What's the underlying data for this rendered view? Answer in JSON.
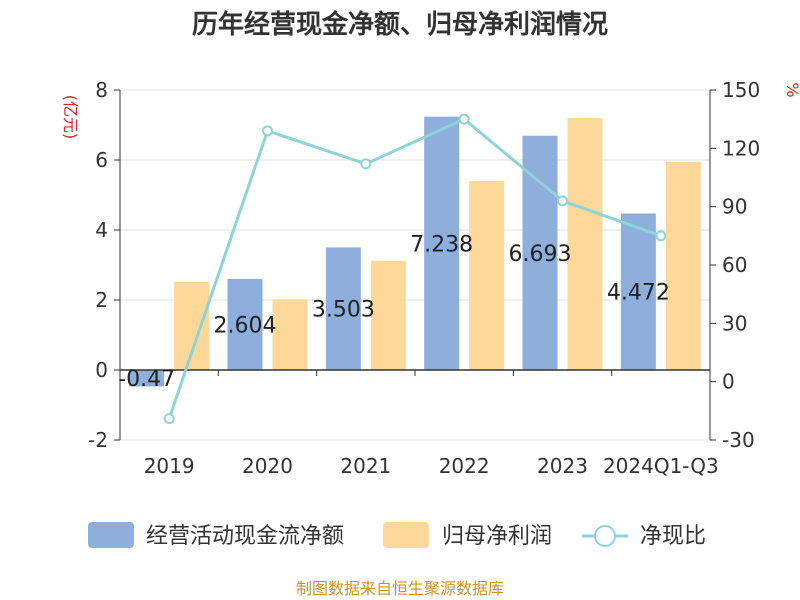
{
  "chart_data": {
    "type": "bar",
    "title": "历年经营现金净额、归母净利润情况",
    "categories": [
      "2019",
      "2020",
      "2021",
      "2022",
      "2023",
      "2024Q1-Q3"
    ],
    "y_left_unit": "(亿元)",
    "y_right_unit": "%",
    "ylim_left": [
      -2,
      8
    ],
    "yticks_left": [
      -2,
      0,
      2,
      4,
      6,
      8
    ],
    "ylim_right": [
      -30,
      150
    ],
    "yticks_right": [
      -30,
      0,
      30,
      60,
      90,
      120,
      150
    ],
    "series": [
      {
        "name": "经营活动现金流净额",
        "type": "bar",
        "axis": "left",
        "color": "#8eaedb",
        "values": [
          -0.47,
          2.604,
          3.503,
          7.238,
          6.693,
          4.472
        ],
        "labels": [
          "-0.47",
          "2.604",
          "3.503",
          "7.238",
          "6.693",
          "4.472"
        ]
      },
      {
        "name": "归母净利润",
        "type": "bar",
        "axis": "left",
        "color": "#fdd898",
        "values": [
          2.52,
          2.02,
          3.12,
          5.4,
          7.2,
          5.95
        ]
      },
      {
        "name": "净现比",
        "type": "line",
        "axis": "right",
        "color": "#8dd4d8",
        "values": [
          -19,
          129,
          112,
          135,
          93,
          75
        ]
      }
    ],
    "grid": true,
    "legend_position": "bottom"
  },
  "source_note": "制图数据来自恒生聚源数据库"
}
